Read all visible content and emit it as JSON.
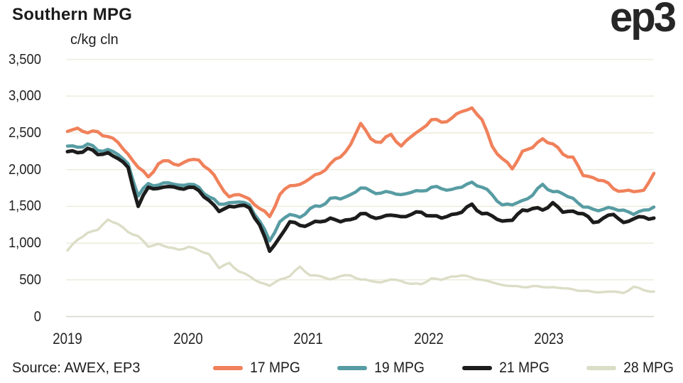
{
  "header": {
    "title": "Southern MPG",
    "logo_text": "ep3",
    "unit_label": "c/kg cln"
  },
  "footer": {
    "source": "Source: AWEX, EP3"
  },
  "chart_data": {
    "type": "line",
    "title": "Southern MPG",
    "ylabel": "c/kg cln",
    "xlabel": "",
    "ylim": [
      0,
      3500
    ],
    "grid": true,
    "legend_position": "bottom",
    "x_interval": "monthly",
    "x_start": "2019-01",
    "x_end": "2023-11",
    "x_tick_labels": [
      "2019",
      "2020",
      "2021",
      "2022",
      "2023"
    ],
    "y_ticks": [
      {
        "value": 0,
        "label": "0"
      },
      {
        "value": 500,
        "label": "500"
      },
      {
        "value": 1000,
        "label": "1,000"
      },
      {
        "value": 1500,
        "label": "1,500"
      },
      {
        "value": 2000,
        "label": "2,000"
      },
      {
        "value": 2500,
        "label": "2,500"
      },
      {
        "value": 3000,
        "label": "3,000"
      },
      {
        "value": 3500,
        "label": "3,500"
      }
    ],
    "series": [
      {
        "name": "17 MPG",
        "color": "#F0815B",
        "values": [
          2520,
          2565,
          2500,
          2515,
          2450,
          2370,
          2210,
          2030,
          1900,
          2080,
          2120,
          2060,
          2130,
          2130,
          2000,
          1810,
          1630,
          1660,
          1600,
          1470,
          1360,
          1660,
          1780,
          1800,
          1880,
          1950,
          2080,
          2170,
          2340,
          2630,
          2420,
          2370,
          2480,
          2320,
          2450,
          2550,
          2680,
          2645,
          2700,
          2790,
          2840,
          2680,
          2320,
          2150,
          2010,
          2250,
          2300,
          2420,
          2350,
          2210,
          2170,
          1920,
          1890,
          1850,
          1740,
          1710,
          1700,
          1720,
          1950
        ]
      },
      {
        "name": "19 MPG",
        "color": "#579CA3",
        "values": [
          2320,
          2305,
          2350,
          2260,
          2275,
          2205,
          2080,
          1640,
          1810,
          1790,
          1820,
          1790,
          1800,
          1760,
          1630,
          1530,
          1550,
          1560,
          1520,
          1300,
          1030,
          1290,
          1390,
          1350,
          1470,
          1500,
          1610,
          1600,
          1660,
          1750,
          1710,
          1680,
          1690,
          1660,
          1690,
          1710,
          1760,
          1740,
          1730,
          1760,
          1830,
          1760,
          1660,
          1520,
          1520,
          1580,
          1650,
          1800,
          1700,
          1670,
          1610,
          1490,
          1460,
          1460,
          1470,
          1450,
          1390,
          1450,
          1490
        ]
      },
      {
        "name": "21 MPG",
        "color": "#1C1C1C",
        "values": [
          2245,
          2230,
          2290,
          2205,
          2230,
          2150,
          2030,
          1500,
          1760,
          1745,
          1770,
          1745,
          1760,
          1715,
          1580,
          1430,
          1500,
          1510,
          1480,
          1250,
          890,
          1080,
          1290,
          1240,
          1260,
          1290,
          1340,
          1290,
          1320,
          1400,
          1360,
          1350,
          1380,
          1360,
          1390,
          1420,
          1370,
          1340,
          1390,
          1420,
          1530,
          1400,
          1370,
          1300,
          1310,
          1450,
          1470,
          1450,
          1550,
          1420,
          1435,
          1400,
          1280,
          1340,
          1390,
          1280,
          1330,
          1355,
          1340
        ]
      },
      {
        "name": "28 MPG",
        "color": "#DCDDC6",
        "values": [
          900,
          1045,
          1140,
          1180,
          1320,
          1260,
          1150,
          1095,
          950,
          990,
          940,
          910,
          950,
          900,
          850,
          660,
          730,
          610,
          550,
          465,
          420,
          505,
          550,
          680,
          560,
          550,
          505,
          550,
          560,
          505,
          485,
          465,
          505,
          485,
          445,
          440,
          520,
          500,
          545,
          560,
          530,
          500,
          465,
          430,
          415,
          400,
          415,
          400,
          400,
          385,
          370,
          350,
          335,
          335,
          340,
          320,
          405,
          360,
          340
        ]
      }
    ]
  }
}
